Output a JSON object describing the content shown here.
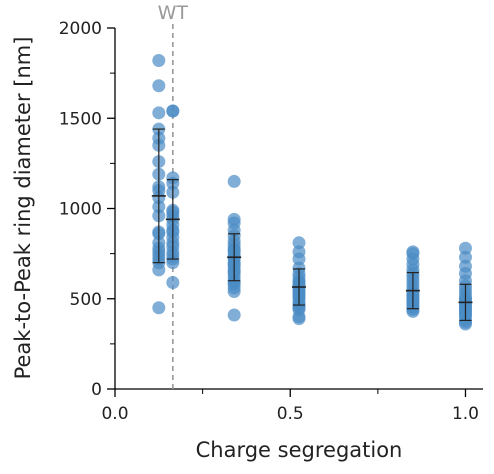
{
  "chart_data": {
    "type": "scatter",
    "title": "",
    "xlabel": "Charge segregation",
    "ylabel": "Peak-to-Peak ring diameter [nm]",
    "xlim": [
      0.0,
      1.05
    ],
    "ylim": [
      0,
      2000
    ],
    "x_ticks": [
      0.0,
      0.5,
      1.0
    ],
    "x_tick_labels": [
      "0.0",
      "0.5",
      "1.0"
    ],
    "x_minor_ticks": [
      0.25,
      0.75
    ],
    "y_ticks": [
      0,
      500,
      1000,
      1500,
      2000
    ],
    "y_tick_labels": [
      "0",
      "500",
      "1000",
      "1500",
      "2000"
    ],
    "y_minor_ticks": [
      250,
      750,
      1250,
      1750
    ],
    "grid": false,
    "legend": "none",
    "point_color": "#4a8bc4",
    "reference_line": {
      "x": 0.165,
      "label": "WT",
      "color": "#999999",
      "style": "dashed"
    },
    "groups": [
      {
        "x": 0.125,
        "values": [
          1820,
          1680,
          1530,
          1440,
          1390,
          1350,
          1260,
          1190,
          1120,
          1100,
          1060,
          1010,
          960,
          870,
          860,
          810,
          780,
          760,
          740,
          720,
          700,
          660,
          450
        ],
        "mean": 1070,
        "sd": 370
      },
      {
        "x": 0.165,
        "values": [
          1540,
          1540,
          1170,
          1140,
          1090,
          990,
          980,
          960,
          940,
          910,
          880,
          870,
          840,
          810,
          790,
          760,
          740,
          720,
          700,
          590
        ],
        "mean": 940,
        "sd": 220
      },
      {
        "x": 0.34,
        "values": [
          1150,
          940,
          920,
          880,
          850,
          820,
          800,
          780,
          770,
          760,
          740,
          730,
          720,
          700,
          690,
          680,
          660,
          650,
          640,
          620,
          600,
          590,
          580,
          560,
          540,
          410
        ],
        "mean": 730,
        "sd": 130
      },
      {
        "x": 0.525,
        "values": [
          810,
          760,
          720,
          670,
          640,
          620,
          600,
          590,
          580,
          570,
          560,
          550,
          540,
          530,
          520,
          510,
          500,
          480,
          470,
          460,
          450,
          440,
          400,
          390
        ],
        "mean": 565,
        "sd": 100
      },
      {
        "x": 0.85,
        "values": [
          760,
          750,
          720,
          690,
          660,
          640,
          620,
          600,
          580,
          560,
          540,
          530,
          520,
          510,
          500,
          490,
          480,
          470,
          460,
          450,
          440,
          430
        ],
        "mean": 545,
        "sd": 100
      },
      {
        "x": 1.0,
        "values": [
          780,
          730,
          680,
          640,
          600,
          570,
          550,
          530,
          510,
          500,
          490,
          480,
          470,
          460,
          450,
          440,
          430,
          420,
          410,
          400,
          380,
          370,
          360
        ],
        "mean": 480,
        "sd": 100
      }
    ]
  }
}
